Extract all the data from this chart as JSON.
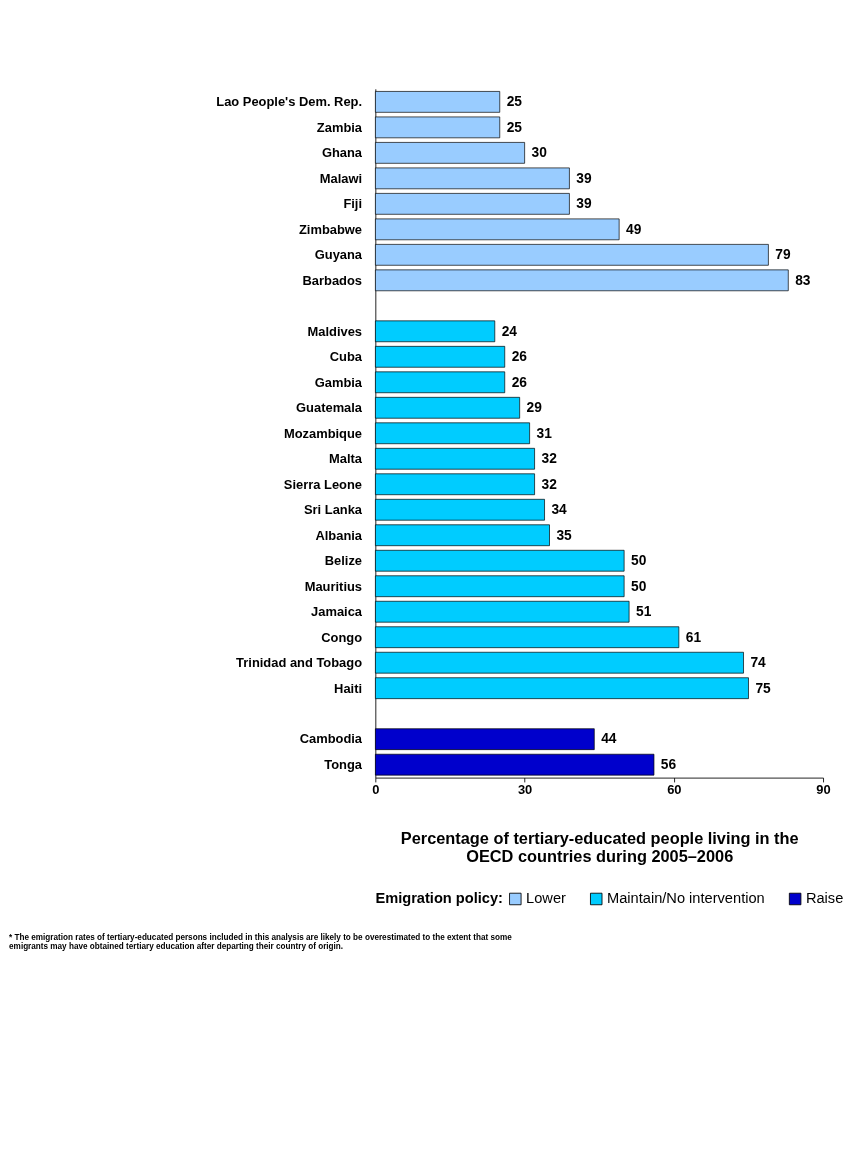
{
  "chart_data": {
    "type": "bar",
    "orientation": "horizontal",
    "categories": [
      "Lao People's Dem. Rep.",
      "Zambia",
      "Ghana",
      "Malawi",
      "Fiji",
      "Zimbabwe",
      "Guyana",
      "Barbados",
      null,
      "Maldives",
      "Cuba",
      "Gambia",
      "Guatemala",
      "Mozambique",
      "Malta",
      "Sierra Leone",
      "Sri Lanka",
      "Albania",
      "Belize",
      "Mauritius",
      "Jamaica",
      "Congo",
      "Trinidad and Tobago",
      "Haiti",
      null,
      "Cambodia",
      "Tonga"
    ],
    "series": [
      {
        "name": "Lower",
        "color": "#99ccff",
        "values": [
          25,
          25,
          30,
          39,
          39,
          49,
          79,
          83,
          null,
          null,
          null,
          null,
          null,
          null,
          null,
          null,
          null,
          null,
          null,
          null,
          null,
          null,
          null,
          null,
          null,
          null,
          null
        ]
      },
      {
        "name": "Maintain/No intervention",
        "color": "#00ccff",
        "values": [
          null,
          null,
          null,
          null,
          null,
          null,
          null,
          null,
          null,
          24,
          26,
          26,
          29,
          31,
          32,
          32,
          34,
          35,
          50,
          50,
          51,
          61,
          74,
          75,
          null,
          null,
          null
        ]
      },
      {
        "name": "Raise",
        "color": "#0000cc",
        "values": [
          null,
          null,
          null,
          null,
          null,
          null,
          null,
          null,
          null,
          null,
          null,
          null,
          null,
          null,
          null,
          null,
          null,
          null,
          null,
          null,
          null,
          null,
          null,
          null,
          null,
          44,
          56
        ]
      }
    ],
    "xlim": [
      0,
      90
    ],
    "xticks": [
      0,
      30,
      60,
      90
    ],
    "xlabel": "Percentage of tertiary-educated people living in the OECD countries during 2005–2006",
    "legend_title": "Emigration policy:",
    "legend": "bottom",
    "grid": false,
    "data_labels": true,
    "annotations": [
      "* The emigration rates of tertiary-educated persons included in this analysis are likely to be overestimated to the extent that some emigrants may have obtained tertiary education after departing their country of origin."
    ]
  }
}
